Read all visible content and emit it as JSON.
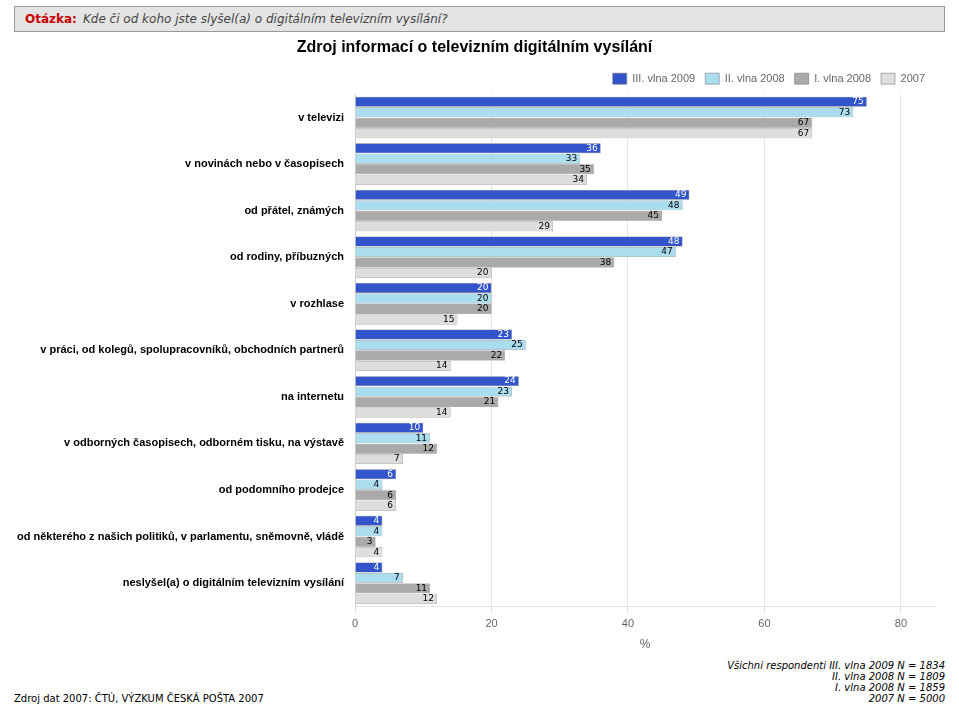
{
  "chart_data": {
    "type": "bar",
    "orientation": "horizontal",
    "title": "Zdroj informací o televizním digitálním vysílání",
    "annotations": [
      "Otázka:",
      "Kde či od koho jste slyšel(a) o digitálním televizním vysílání?",
      "Zdroj dat 2007: ČTÚ, VÝZKUM ČESKÁ POŠTA 2007",
      "Všichni respondenti III. vlna 2009 N = 1834\nII. vlna 2008 N = 1809\nI. vlna 2008 N = 1859\n2007 N = 5000"
    ],
    "xlabel": "%",
    "categories": [
      "v televizi",
      "v novinách nebo v časopisech",
      "od přátel, známých",
      "od rodiny, příbuzných",
      "v rozhlase",
      "v práci, od kolegů, spolupracovníků, obchodních partnerů",
      "na internetu",
      "v odborných časopisech, odborném tisku, na výstavě",
      "od podomního prodejce",
      "od některého z našich politiků, v parlamentu, sněmovně, vládě",
      "neslyšel(a) o digitálním televizním vysílání"
    ],
    "series": [
      {
        "name": "III. vlna 2009",
        "color": "#3355cc",
        "values": [
          75,
          36,
          49,
          48,
          20,
          23,
          24,
          10,
          6,
          4,
          4
        ]
      },
      {
        "name": "II. vlna 2008",
        "color": "#aaddee",
        "values": [
          73,
          33,
          48,
          47,
          20,
          25,
          23,
          11,
          4,
          4,
          7
        ]
      },
      {
        "name": "I. vlna 2008",
        "color": "#aaaaaa",
        "values": [
          67,
          35,
          45,
          38,
          20,
          22,
          21,
          12,
          6,
          3,
          11
        ]
      },
      {
        "name": "2007",
        "color": "#dddddd",
        "values": [
          67,
          34,
          29,
          20,
          15,
          14,
          14,
          7,
          6,
          4,
          12
        ]
      }
    ],
    "xlim": [
      0,
      85
    ],
    "xticks": [
      0,
      20,
      40,
      60,
      80
    ],
    "grid": true,
    "legend": "top",
    "data_labels": true
  }
}
